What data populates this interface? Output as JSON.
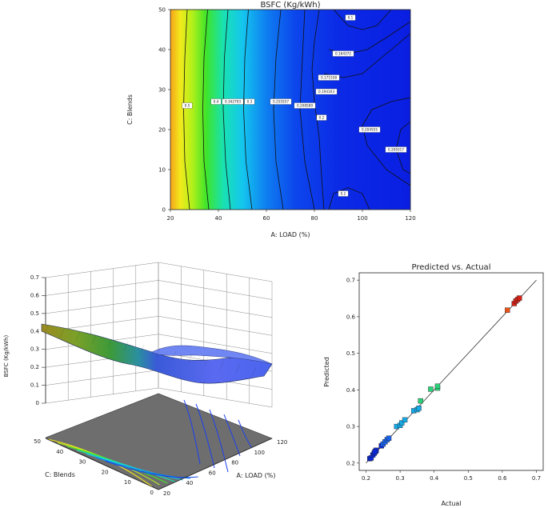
{
  "chart_data": [
    {
      "type": "contour",
      "title": "BSFC (Kg/kWh)",
      "xlabel": "A: LOAD  (%)",
      "ylabel": "C: Blends",
      "xlim": [
        20,
        120
      ],
      "ylim": [
        0,
        50
      ],
      "xticks": [
        "20",
        "40",
        "60",
        "80",
        "100",
        "120"
      ],
      "yticks": [
        "0",
        "10",
        "20",
        "30",
        "40",
        "50"
      ],
      "contour_labels": [
        {
          "text": "0.5",
          "x": 27,
          "y": 26
        },
        {
          "text": "0.4",
          "x": 39,
          "y": 27
        },
        {
          "text": "0.342793",
          "x": 46,
          "y": 27
        },
        {
          "text": "0.3",
          "x": 53,
          "y": 27
        },
        {
          "text": "0.255557",
          "x": 66,
          "y": 27
        },
        {
          "text": "0.208589",
          "x": 76,
          "y": 26
        },
        {
          "text": "0.2",
          "x": 83,
          "y": 23
        },
        {
          "text": "0.194163",
          "x": 85,
          "y": 29.5
        },
        {
          "text": "0.171558",
          "x": 86,
          "y": 33
        },
        {
          "text": "0.164372",
          "x": 92,
          "y": 39
        },
        {
          "text": "0.1",
          "x": 95,
          "y": 48
        },
        {
          "text": "0.204555",
          "x": 103,
          "y": 20
        },
        {
          "text": "0.209317",
          "x": 114,
          "y": 15
        },
        {
          "text": "0.2",
          "x": 92,
          "y": 4
        }
      ]
    },
    {
      "type": "surface",
      "zlabel": "BSFC (Kg/kWh)",
      "xlabel": "A: LOAD  (%)",
      "ylabel": "C: Blends",
      "zticks": [
        "0",
        "0.1",
        "0.2",
        "0.3",
        "0.4",
        "0.5",
        "0.6",
        "0.7"
      ],
      "xticks": [
        "20",
        "40",
        "60",
        "80",
        "100",
        "120"
      ],
      "yticks": [
        "0",
        "10",
        "20",
        "30",
        "40",
        "50"
      ]
    },
    {
      "type": "scatter",
      "title": "Predicted vs. Actual",
      "xlabel": "Actual",
      "ylabel": "Predicted",
      "xlim": [
        0.2,
        0.7
      ],
      "ylim": [
        0.2,
        0.7
      ],
      "xticks": [
        "0.2",
        "0.3",
        "0.4",
        "0.5",
        "0.6",
        "0.7"
      ],
      "yticks": [
        "0.2",
        "0.3",
        "0.4",
        "0.5",
        "0.6",
        "0.7"
      ],
      "points": [
        [
          0.211,
          0.212
        ],
        [
          0.215,
          0.214
        ],
        [
          0.22,
          0.222
        ],
        [
          0.224,
          0.227
        ],
        [
          0.228,
          0.232
        ],
        [
          0.23,
          0.235
        ],
        [
          0.226,
          0.231
        ],
        [
          0.245,
          0.247
        ],
        [
          0.25,
          0.252
        ],
        [
          0.256,
          0.258
        ],
        [
          0.262,
          0.264
        ],
        [
          0.267,
          0.268
        ],
        [
          0.29,
          0.3
        ],
        [
          0.3,
          0.303
        ],
        [
          0.305,
          0.31
        ],
        [
          0.314,
          0.318
        ],
        [
          0.34,
          0.343
        ],
        [
          0.35,
          0.346
        ],
        [
          0.355,
          0.35
        ],
        [
          0.36,
          0.37
        ],
        [
          0.39,
          0.402
        ],
        [
          0.41,
          0.405
        ],
        [
          0.41,
          0.41
        ],
        [
          0.615,
          0.618
        ],
        [
          0.635,
          0.636
        ],
        [
          0.64,
          0.643
        ],
        [
          0.645,
          0.647
        ],
        [
          0.65,
          0.651
        ]
      ]
    }
  ]
}
